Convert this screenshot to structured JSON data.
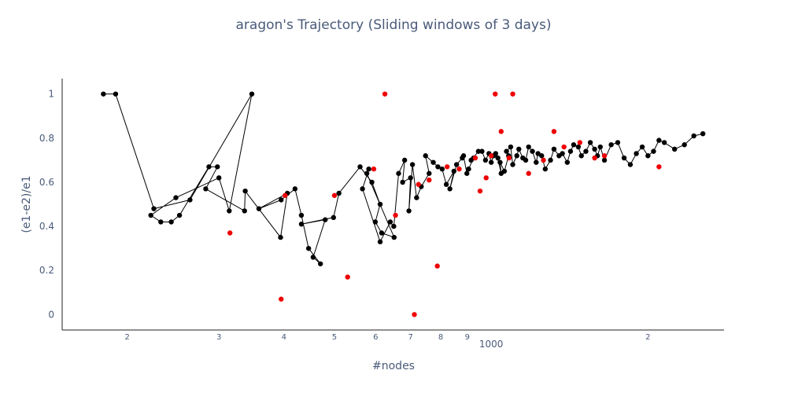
{
  "chart_data": {
    "type": "scatter",
    "title": "aragon's Trajectory (Sliding windows of 3 days)",
    "xlabel": "#nodes",
    "ylabel": "(e1-e2)/e1",
    "x_scale": "log",
    "xlim": [
      150,
      2800
    ],
    "ylim": [
      -0.07,
      1.07
    ],
    "grid": false,
    "legend": "none",
    "x_tick_labels": [
      {
        "value": 200,
        "label": "2"
      },
      {
        "value": 300,
        "label": "3"
      },
      {
        "value": 400,
        "label": "4"
      },
      {
        "value": 500,
        "label": "5"
      },
      {
        "value": 600,
        "label": "6"
      },
      {
        "value": 700,
        "label": "7"
      },
      {
        "value": 800,
        "label": "8"
      },
      {
        "value": 900,
        "label": "9"
      },
      {
        "value": 1000,
        "label": "1000"
      },
      {
        "value": 2000,
        "label": "2"
      }
    ],
    "y_ticks": [
      0,
      0.2,
      0.4,
      0.6,
      0.8,
      1
    ],
    "colors": {
      "line": "#000000",
      "point": "#000000",
      "highlight": "#ee0000",
      "text": "#4a5a7a"
    },
    "series": [
      {
        "x": [
          180,
          190,
          225,
          264,
          347,
          314,
          300,
          248,
          222,
          232,
          243,
          252,
          287,
          298,
          283,
          336,
          337,
          394,
          406,
          358,
          395,
          420,
          432,
          446,
          470,
          455,
          480,
          432,
          498,
          510,
          560,
          590,
          612,
          599,
          616,
          651,
          577,
          582,
          566,
          612,
          640,
          650,
          664,
          682,
          676,
          700,
          695,
          706,
          719,
          734,
          760,
          748,
          774,
          790,
          805,
          820,
          848,
          833,
          858,
          880,
          885,
          898,
          905,
          925,
          915,
          945,
          960,
          975,
          990,
          1000,
          1010,
          1020,
          1030,
          1045,
          1040,
          1060,
          1080,
          1070,
          1090,
          1100,
          1120,
          1130,
          1150,
          1165,
          1180,
          1200,
          1220,
          1230,
          1250,
          1270,
          1300,
          1320,
          1350,
          1370,
          1400,
          1420,
          1440,
          1470,
          1490,
          1520,
          1550,
          1580,
          1600,
          1620,
          1650,
          1700,
          1750,
          1800,
          1850,
          1900,
          1950,
          2000,
          2050,
          2100,
          2150,
          2250,
          2350,
          2450,
          2550
        ],
        "y": [
          1,
          1,
          0.48,
          0.52,
          1,
          0.47,
          0.62,
          0.53,
          0.45,
          0.42,
          0.42,
          0.45,
          0.67,
          0.67,
          0.57,
          0.47,
          0.56,
          0.35,
          0.55,
          0.48,
          0.52,
          0.57,
          0.45,
          0.3,
          0.23,
          0.26,
          0.43,
          0.41,
          0.44,
          0.55,
          0.67,
          0.6,
          0.5,
          0.42,
          0.37,
          0.35,
          0.64,
          0.66,
          0.57,
          0.33,
          0.42,
          0.4,
          0.64,
          0.7,
          0.6,
          0.62,
          0.47,
          0.68,
          0.53,
          0.58,
          0.64,
          0.72,
          0.69,
          0.67,
          0.66,
          0.59,
          0.65,
          0.57,
          0.68,
          0.71,
          0.72,
          0.64,
          0.66,
          0.71,
          0.7,
          0.74,
          0.74,
          0.7,
          0.73,
          0.69,
          0.72,
          0.73,
          0.71,
          0.64,
          0.69,
          0.65,
          0.72,
          0.74,
          0.76,
          0.68,
          0.72,
          0.75,
          0.71,
          0.7,
          0.76,
          0.74,
          0.69,
          0.73,
          0.72,
          0.66,
          0.7,
          0.75,
          0.72,
          0.73,
          0.69,
          0.74,
          0.77,
          0.76,
          0.72,
          0.74,
          0.78,
          0.75,
          0.72,
          0.76,
          0.7,
          0.77,
          0.78,
          0.71,
          0.68,
          0.73,
          0.76,
          0.72,
          0.74,
          0.79,
          0.78,
          0.75,
          0.77,
          0.81,
          0.82
        ]
      }
    ],
    "highlighted": {
      "x": [
        315,
        395,
        402,
        500,
        530,
        595,
        625,
        655,
        712,
        725,
        760,
        788,
        823,
        868,
        932,
        952,
        978,
        1000,
        1018,
        1045,
        1082,
        1100,
        1180,
        1260,
        1320,
        1380,
        1480,
        1580,
        1650,
        2100
      ],
      "y": [
        0.37,
        0.07,
        0.54,
        0.54,
        0.17,
        0.66,
        1,
        0.45,
        0,
        0.59,
        0.61,
        0.22,
        0.67,
        0.66,
        0.71,
        0.56,
        0.62,
        0.72,
        1,
        0.83,
        0.71,
        1,
        0.64,
        0.7,
        0.83,
        0.76,
        0.78,
        0.71,
        0.72,
        0.67
      ]
    }
  }
}
